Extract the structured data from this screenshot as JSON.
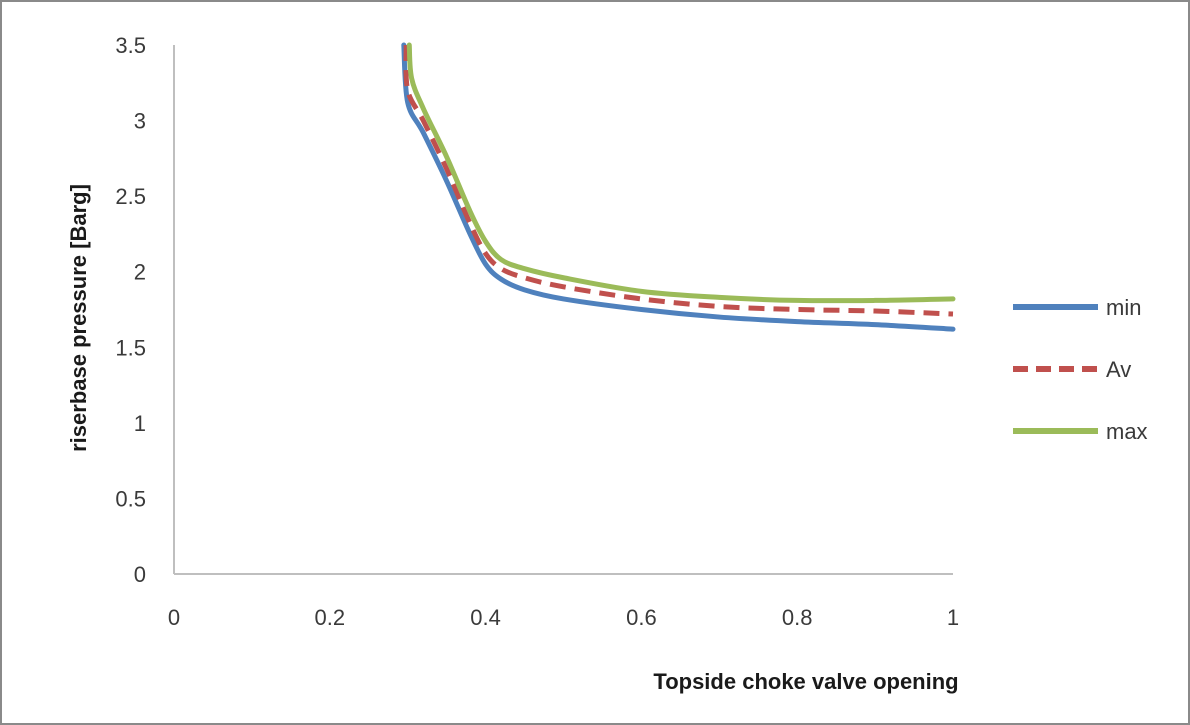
{
  "chart_data": {
    "type": "line",
    "title": "",
    "xlabel": "Topside choke valve opening",
    "ylabel": "riserbase pressure [Barg]",
    "xlim": [
      0,
      1
    ],
    "ylim": [
      0,
      3.5
    ],
    "x_ticks": [
      "0",
      "0.2",
      "0.4",
      "0.6",
      "0.8",
      "1"
    ],
    "y_ticks": [
      "0",
      "0.5",
      "1",
      "1.5",
      "2",
      "2.5",
      "3",
      "3.5"
    ],
    "grid": false,
    "legend_position": "right",
    "series": [
      {
        "name": "min",
        "color": "#4f81bd",
        "dash": "solid",
        "x": [
          0.295,
          0.3,
          0.32,
          0.35,
          0.38,
          0.4,
          0.42,
          0.45,
          0.5,
          0.6,
          0.7,
          0.8,
          0.9,
          1.0
        ],
        "y": [
          3.5,
          3.12,
          2.92,
          2.6,
          2.25,
          2.05,
          1.95,
          1.88,
          1.82,
          1.75,
          1.7,
          1.67,
          1.65,
          1.62
        ]
      },
      {
        "name": "Av",
        "color": "#c0504d",
        "dash": "dashed",
        "x": [
          0.298,
          0.3,
          0.32,
          0.35,
          0.38,
          0.4,
          0.42,
          0.45,
          0.5,
          0.6,
          0.7,
          0.8,
          0.9,
          1.0
        ],
        "y": [
          3.5,
          3.2,
          3.0,
          2.68,
          2.32,
          2.12,
          2.02,
          1.96,
          1.9,
          1.82,
          1.77,
          1.75,
          1.74,
          1.72
        ]
      },
      {
        "name": "max",
        "color": "#9bbb59",
        "dash": "solid",
        "x": [
          0.302,
          0.305,
          0.32,
          0.35,
          0.38,
          0.4,
          0.42,
          0.45,
          0.5,
          0.6,
          0.7,
          0.8,
          0.9,
          1.0
        ],
        "y": [
          3.5,
          3.28,
          3.08,
          2.76,
          2.4,
          2.2,
          2.08,
          2.02,
          1.96,
          1.87,
          1.83,
          1.81,
          1.81,
          1.82
        ]
      }
    ]
  }
}
